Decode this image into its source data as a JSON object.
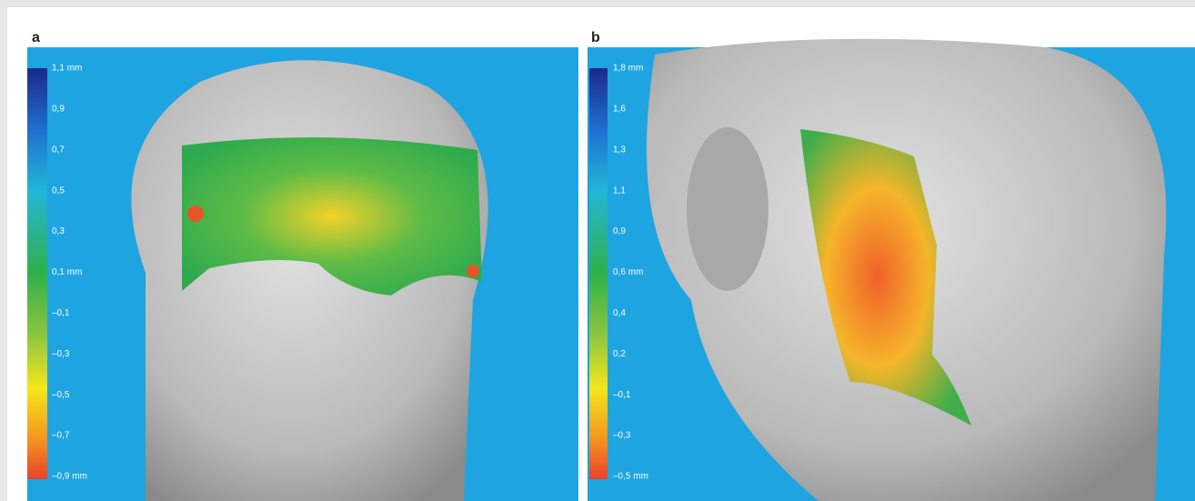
{
  "panels": [
    {
      "label": "a",
      "scale_labels": [
        "1,1 mm",
        "0,9",
        "0,7",
        "0,5",
        "0,3",
        "0,1 mm",
        "–0,1",
        "–0,3",
        "–0,5",
        "–0,7",
        "–0,9 mm"
      ]
    },
    {
      "label": "b",
      "scale_labels": [
        "1,8 mm",
        "1,6",
        "1,3",
        "1,1",
        "0,9",
        "0,6 mm",
        "0,4",
        "0,2",
        "–0,1",
        "–0,3",
        "–0,5 mm"
      ]
    }
  ]
}
